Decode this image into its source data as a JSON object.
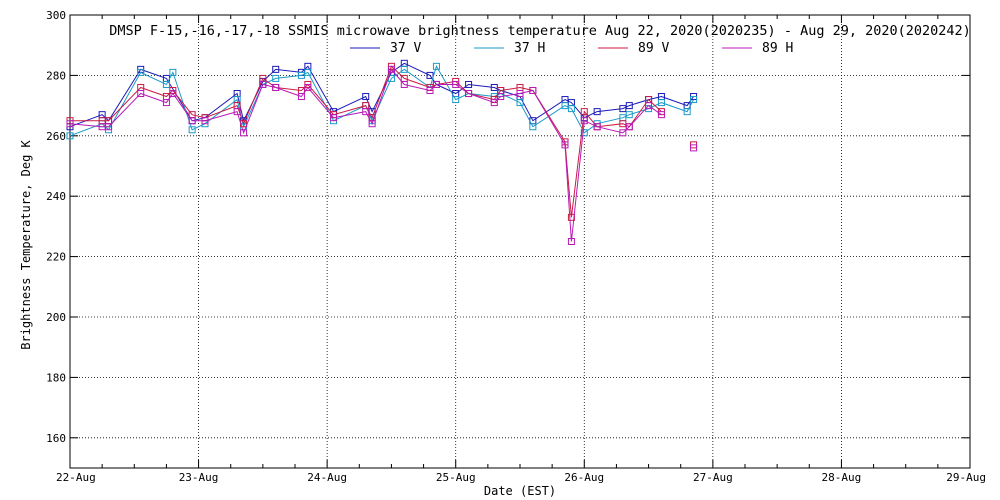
{
  "chart_data": {
    "type": "line",
    "title": "DMSP F-15,-16,-17,-18 SSMIS microwave brightness temperature Aug 22, 2020(2020235) - Aug 29, 2020(2020242)",
    "xlabel": "Date (EST)",
    "ylabel": "Brightness Temperature, Deg K",
    "xlim": [
      0,
      7
    ],
    "ylim": [
      150,
      300
    ],
    "x_tick_values": [
      0,
      1,
      2,
      3,
      4,
      5,
      6,
      7
    ],
    "x_tick_labels": [
      "22-Aug",
      "23-Aug",
      "24-Aug",
      "25-Aug",
      "26-Aug",
      "27-Aug",
      "28-Aug",
      "29-Aug"
    ],
    "y_ticks": [
      160,
      180,
      200,
      220,
      240,
      260,
      280,
      300
    ],
    "grid": true,
    "legend_position": "top-center",
    "series": [
      {
        "name": "37 V",
        "color": "#1a1ab8",
        "points": [
          [
            0.0,
            263
          ],
          [
            0.25,
            267
          ],
          [
            0.3,
            265
          ],
          [
            0.55,
            282
          ],
          [
            0.75,
            279
          ],
          [
            0.95,
            265
          ],
          [
            1.05,
            266
          ],
          [
            1.3,
            274
          ],
          [
            1.35,
            265
          ],
          [
            1.5,
            278
          ],
          [
            1.6,
            282
          ],
          [
            1.8,
            281
          ],
          [
            1.85,
            283
          ],
          [
            2.05,
            268
          ],
          [
            2.3,
            273
          ],
          [
            2.35,
            268
          ],
          [
            2.5,
            281
          ],
          [
            2.6,
            284
          ],
          [
            2.8,
            280
          ],
          [
            2.85,
            277
          ],
          [
            3.0,
            274
          ],
          [
            3.1,
            277
          ],
          [
            3.3,
            276
          ],
          [
            3.35,
            275
          ],
          [
            3.5,
            273
          ],
          [
            3.6,
            265
          ],
          [
            3.85,
            272
          ],
          [
            3.9,
            271
          ],
          [
            4.0,
            266
          ],
          [
            4.1,
            268
          ],
          [
            4.3,
            269
          ],
          [
            4.35,
            270
          ],
          [
            4.5,
            272
          ],
          [
            4.6,
            273
          ],
          [
            4.8,
            270
          ],
          [
            4.85,
            273
          ]
        ],
        "breaks": []
      },
      {
        "name": "37 H",
        "color": "#1a9ac8",
        "points": [
          [
            0.0,
            260
          ],
          [
            0.25,
            264
          ],
          [
            0.3,
            262
          ],
          [
            0.55,
            281
          ],
          [
            0.75,
            277
          ],
          [
            0.8,
            281
          ],
          [
            0.95,
            262
          ],
          [
            1.05,
            264
          ],
          [
            1.3,
            272
          ],
          [
            1.35,
            263
          ],
          [
            1.5,
            277
          ],
          [
            1.6,
            279
          ],
          [
            1.8,
            280
          ],
          [
            1.85,
            281
          ],
          [
            2.05,
            265
          ],
          [
            2.3,
            270
          ],
          [
            2.35,
            265
          ],
          [
            2.5,
            279
          ],
          [
            2.6,
            282
          ],
          [
            2.8,
            276
          ],
          [
            2.85,
            283
          ],
          [
            3.0,
            272
          ],
          [
            3.1,
            274
          ],
          [
            3.3,
            273
          ],
          [
            3.35,
            274
          ],
          [
            3.5,
            271
          ],
          [
            3.6,
            263
          ],
          [
            3.85,
            270
          ],
          [
            3.9,
            269
          ],
          [
            4.0,
            261
          ],
          [
            4.1,
            264
          ],
          [
            4.3,
            266
          ],
          [
            4.35,
            267
          ],
          [
            4.5,
            269
          ],
          [
            4.6,
            271
          ],
          [
            4.8,
            268
          ],
          [
            4.85,
            272
          ]
        ],
        "breaks": []
      },
      {
        "name": "89 V",
        "color": "#cc1a44",
        "points": [
          [
            0.0,
            265
          ],
          [
            0.25,
            265
          ],
          [
            0.3,
            265
          ],
          [
            0.55,
            276
          ],
          [
            0.75,
            273
          ],
          [
            0.8,
            275
          ],
          [
            0.95,
            267
          ],
          [
            1.05,
            266
          ],
          [
            1.3,
            270
          ],
          [
            1.35,
            264
          ],
          [
            1.5,
            279
          ],
          [
            1.6,
            276
          ],
          [
            1.8,
            275
          ],
          [
            1.85,
            277
          ],
          [
            2.05,
            267
          ],
          [
            2.3,
            270
          ],
          [
            2.35,
            266
          ],
          [
            2.5,
            283
          ],
          [
            2.6,
            279
          ],
          [
            2.8,
            276
          ],
          [
            2.85,
            277
          ],
          [
            3.0,
            278
          ],
          [
            3.1,
            274
          ],
          [
            3.3,
            272
          ],
          [
            3.35,
            275
          ],
          [
            3.5,
            276
          ],
          [
            3.6,
            275
          ],
          [
            3.85,
            258
          ],
          [
            3.9,
            233
          ],
          [
            4.0,
            268
          ],
          [
            4.1,
            263
          ],
          [
            4.3,
            264
          ],
          [
            4.35,
            263
          ],
          [
            4.5,
            272
          ],
          [
            4.6,
            268
          ],
          [
            4.85,
            257
          ]
        ],
        "breaks": [
          35
        ]
      },
      {
        "name": "89 H",
        "color": "#b81ab8",
        "points": [
          [
            0.0,
            264
          ],
          [
            0.25,
            263
          ],
          [
            0.3,
            263
          ],
          [
            0.55,
            274
          ],
          [
            0.75,
            271
          ],
          [
            0.8,
            274
          ],
          [
            0.95,
            265
          ],
          [
            1.05,
            265
          ],
          [
            1.3,
            268
          ],
          [
            1.35,
            261
          ],
          [
            1.5,
            277
          ],
          [
            1.6,
            276
          ],
          [
            1.8,
            273
          ],
          [
            1.85,
            276
          ],
          [
            2.05,
            266
          ],
          [
            2.3,
            268
          ],
          [
            2.35,
            264
          ],
          [
            2.5,
            282
          ],
          [
            2.6,
            277
          ],
          [
            2.8,
            275
          ],
          [
            2.85,
            277
          ],
          [
            3.0,
            277
          ],
          [
            3.1,
            274
          ],
          [
            3.3,
            271
          ],
          [
            3.35,
            273
          ],
          [
            3.5,
            274
          ],
          [
            3.6,
            275
          ],
          [
            3.85,
            257
          ],
          [
            3.9,
            225
          ],
          [
            4.0,
            265
          ],
          [
            4.1,
            263
          ],
          [
            4.3,
            261
          ],
          [
            4.35,
            263
          ],
          [
            4.5,
            270
          ],
          [
            4.6,
            267
          ],
          [
            4.85,
            256
          ]
        ],
        "breaks": [
          35
        ]
      }
    ]
  }
}
